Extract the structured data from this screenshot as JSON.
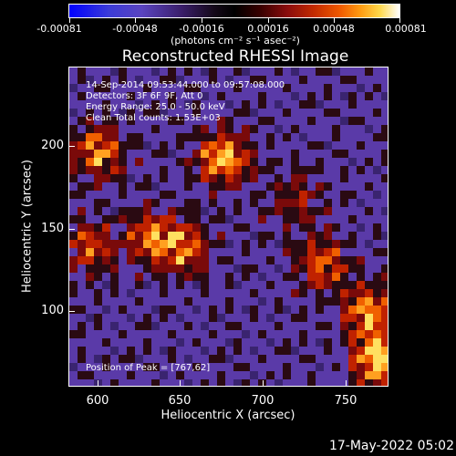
{
  "colorbar": {
    "tick_labels": [
      "-0.00081",
      "-0.00048",
      "-0.00016",
      "0.00016",
      "0.00048",
      "0.00081"
    ],
    "units": "(photons cm⁻² s⁻¹ asec⁻²)"
  },
  "title": "Reconstructed RHESSI Image",
  "info": {
    "time_range": "14-Sep-2014 09:53:44.000 to 09:57:08.000",
    "detectors": "Detectors: 3F 6F 9F, Att 0",
    "energy": "Energy Range: 25.0 - 50.0 keV",
    "method": "Clean     Total counts: 1.53E+03",
    "peak": "Position of Peak = [767,62]"
  },
  "axes": {
    "x_title": "Heliocentric X (arcsec)",
    "y_title": "Heliocentric Y (arcsec)",
    "x_ticks": [
      "600",
      "650",
      "700",
      "750"
    ],
    "y_ticks": [
      "100",
      "150",
      "200"
    ]
  },
  "timestamp": "17-May-2022 05:02"
}
